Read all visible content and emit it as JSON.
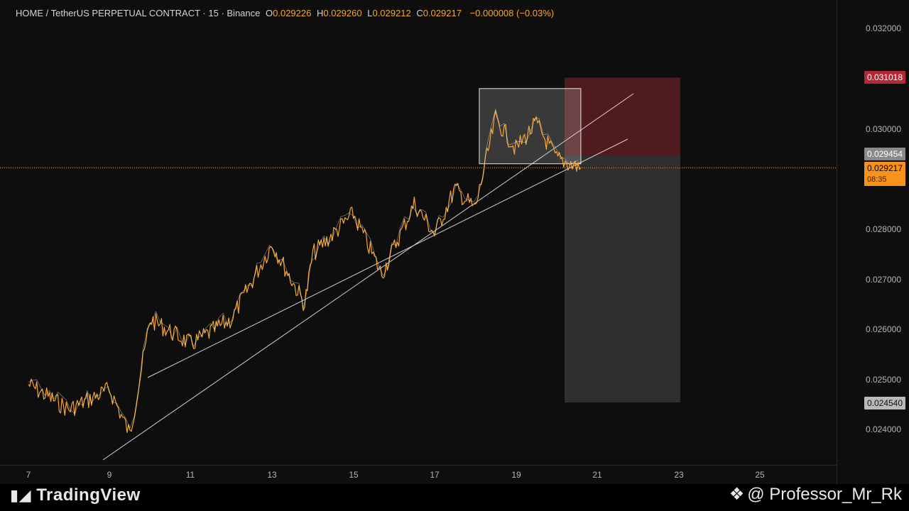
{
  "legend": {
    "symbol": "HOME / TetherUS PERPETUAL CONTRACT · 15 · Binance",
    "o_label": "O",
    "o_value": "0.029226",
    "h_label": "H",
    "h_value": "0.029260",
    "l_label": "L",
    "l_value": "0.029212",
    "c_label": "C",
    "c_value": "0.029217",
    "change": "−0.000008 (−0.03%)"
  },
  "price_scale": {
    "ticks": [
      "0.032000",
      "0.030000",
      "0.028000",
      "0.027000",
      "0.026000",
      "0.025000",
      "0.024000"
    ],
    "stop_price": "0.031018",
    "entry_price": "0.029454",
    "last_price": "0.029217",
    "countdown": "08:35",
    "target_price": "0.024540"
  },
  "time_scale": {
    "ticks": [
      "7",
      "9",
      "11",
      "13",
      "15",
      "17",
      "19",
      "21",
      "23",
      "25"
    ]
  },
  "footer": {
    "logo": "TradingView",
    "watermark": "@ Professor_Mr_Rk"
  },
  "colors": {
    "candle": "#f7a633",
    "stop_zone": "#5c1d22",
    "target_zone": "#4a4a4a",
    "last_price_badge": "#f7931a",
    "stop_badge": "#b22833",
    "entry_badge": "#8a8a8a",
    "target_badge": "#b9b9b9"
  },
  "chart_data": {
    "type": "line",
    "symbol": "HOME / TetherUS PERPETUAL CONTRACT",
    "interval": "15",
    "x": [
      "7",
      "8",
      "9",
      "9.5",
      "10",
      "11",
      "12",
      "13",
      "13.8",
      "14",
      "15",
      "15.7",
      "16.5",
      "17",
      "17.5",
      "18",
      "18.5",
      "19",
      "19.5",
      "20",
      "20.6"
    ],
    "series": [
      {
        "values": [
          0.0249,
          0.0244,
          0.0248,
          0.0239,
          0.0262,
          0.0257,
          0.0262,
          0.0277,
          0.0265,
          0.0275,
          0.0283,
          0.0271,
          0.0285,
          0.0279,
          0.0288,
          0.0284,
          0.0302,
          0.0296,
          0.0301,
          0.0294,
          0.02922
        ]
      }
    ],
    "ylim": [
      0.0236,
      0.0324
    ],
    "annotations": {
      "consolidation_box": {
        "x_start": "18.1",
        "x_end": "20.6",
        "y_top": 0.0308,
        "y_bottom": 0.0293
      },
      "short_position": {
        "entry": 0.029454,
        "stop": 0.031018,
        "target": 0.02454
      },
      "trendlines": 2
    }
  }
}
